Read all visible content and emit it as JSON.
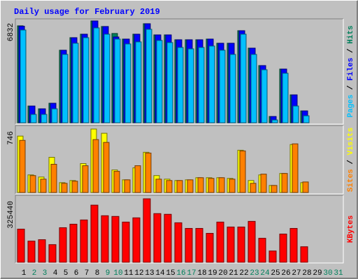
{
  "chart_data": [
    {
      "type": "bar",
      "title": "Daily usage for February 2019",
      "legend_separator": " / ",
      "ylim": [
        0,
        6832
      ],
      "yticks": [
        6832
      ],
      "series": [
        {
          "name": "Hits",
          "color": "#00805c",
          "values": [
            6504,
            1123,
            936,
            1310,
            4867,
            5709,
            5943,
            6832,
            6458,
            5990,
            5615,
            5943,
            6645,
            5896,
            5896,
            5569,
            5569,
            5569,
            5615,
            5335,
            5335,
            6177,
            5007,
            3837,
            421,
            3603,
            1872,
            796,
            null,
            null,
            null
          ]
        },
        {
          "name": "Files",
          "color": "#0000ff",
          "values": [
            6480,
            1123,
            936,
            1310,
            4867,
            5709,
            5943,
            6832,
            6458,
            5756,
            5615,
            5943,
            6645,
            5896,
            5896,
            5569,
            5569,
            5569,
            5615,
            5335,
            5335,
            6177,
            5007,
            3837,
            421,
            3603,
            1872,
            796,
            null,
            null,
            null
          ]
        },
        {
          "name": "Pages",
          "color": "#00c0ff",
          "values": [
            6224,
            561,
            561,
            936,
            4586,
            5335,
            5709,
            6364,
            5943,
            5615,
            5288,
            5428,
            6270,
            5522,
            5381,
            5054,
            4960,
            5054,
            5148,
            4867,
            4586,
            5943,
            4586,
            3556,
            187,
            3322,
            1123,
            468,
            null,
            null,
            null
          ]
        }
      ]
    },
    {
      "type": "bar",
      "legend_separator": " / ",
      "ylim": [
        0,
        746
      ],
      "yticks": [
        746
      ],
      "series": [
        {
          "name": "Visits",
          "color": "#ffff00",
          "values": [
            663,
            207,
            182,
            414,
            116,
            141,
            340,
            746,
            696,
            265,
            149,
            290,
            473,
            199,
            157,
            141,
            149,
            174,
            174,
            174,
            166,
            497,
            141,
            207,
            83,
            224,
            564,
            116,
            null,
            null,
            null
          ]
        },
        {
          "name": "Sites",
          "color": "#ff8000",
          "values": [
            613,
            199,
            157,
            332,
            108,
            133,
            315,
            622,
            589,
            249,
            149,
            315,
            464,
            157,
            141,
            141,
            149,
            174,
            166,
            174,
            157,
            489,
            108,
            216,
            83,
            224,
            572,
            124,
            null,
            null,
            null
          ]
        }
      ]
    },
    {
      "type": "bar",
      "ylim": [
        0,
        325440
      ],
      "yticks": [
        325440
      ],
      "series": [
        {
          "name": "KBytes",
          "color": "#ff0000",
          "values": [
            169952,
            108480,
            115712,
            90400,
            177184,
            195264,
            216960,
            292896,
            238656,
            235040,
            206112,
            227808,
            325440,
            249504,
            245888,
            202496,
            173568,
            173568,
            148256,
            206112,
            180800,
            180800,
            209728,
            122944,
            57856,
            144640,
            173568,
            79552,
            null,
            null,
            null
          ]
        }
      ],
      "categories": [
        "1",
        "2",
        "3",
        "4",
        "5",
        "6",
        "7",
        "8",
        "9",
        "10",
        "11",
        "12",
        "13",
        "14",
        "15",
        "16",
        "17",
        "18",
        "19",
        "20",
        "21",
        "22",
        "23",
        "24",
        "25",
        "26",
        "27",
        "28",
        "29",
        "30",
        "31"
      ],
      "category_colors": [
        "#000000",
        "#00805c",
        "#00805c",
        "#000000",
        "#000000",
        "#000000",
        "#000000",
        "#000000",
        "#00805c",
        "#00805c",
        "#000000",
        "#000000",
        "#000000",
        "#000000",
        "#000000",
        "#00805c",
        "#00805c",
        "#000000",
        "#000000",
        "#000000",
        "#000000",
        "#000000",
        "#00805c",
        "#00805c",
        "#000000",
        "#000000",
        "#000000",
        "#000000",
        "#000000",
        "#00805c",
        "#00805c"
      ]
    }
  ]
}
